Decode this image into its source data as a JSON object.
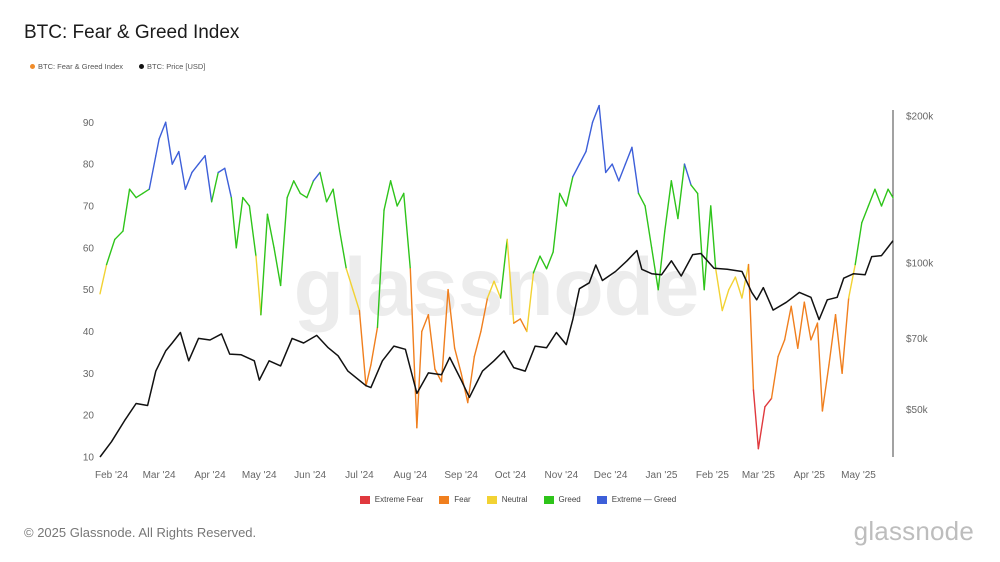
{
  "title": "BTC: Fear & Greed Index",
  "top_legend": [
    {
      "label": "BTC: Fear & Greed Index",
      "color": "#f08c2a"
    },
    {
      "label": "BTC: Price [USD]",
      "color": "#111111"
    }
  ],
  "bottom_legend": [
    {
      "label": "Extreme Fear",
      "color": "#e0393e"
    },
    {
      "label": "Fear",
      "color": "#f07f1e"
    },
    {
      "label": "Neutral",
      "color": "#f2d233"
    },
    {
      "label": "Greed",
      "color": "#2ec41a"
    },
    {
      "label": "Extreme — Greed",
      "color": "#3d5fd9"
    }
  ],
  "footer": "© 2025 Glassnode. All Rights Reserved.",
  "brand": "glassnode",
  "watermark": "glassnode",
  "chart_data": {
    "type": "line",
    "title": "BTC: Fear & Greed Index",
    "x_tick_labels": [
      "Feb '24",
      "Mar '24",
      "Apr '24",
      "May '24",
      "Jun '24",
      "Jul '24",
      "Aug '24",
      "Sep '24",
      "Oct '24",
      "Nov '24",
      "Dec '24",
      "Jan '25",
      "Feb '25",
      "Mar '25",
      "Apr '25",
      "May '25"
    ],
    "x_start": "2024-01-25",
    "x_end": "2025-05-22",
    "left_axis": {
      "ticks": [
        10,
        20,
        30,
        40,
        50,
        60,
        70,
        80,
        90
      ],
      "range": [
        10,
        91.5
      ]
    },
    "right_axis": {
      "scale": "log",
      "tick_labels": [
        "$50k",
        "$70k",
        "$100k",
        "$200k"
      ],
      "tick_values": [
        50000,
        70000,
        100000,
        200000
      ],
      "range": [
        40000,
        200000
      ]
    },
    "zone_thresholds": {
      "extreme_fear_below": 25,
      "fear_below": 46,
      "neutral_below": 55,
      "greed_below": 75
    },
    "series": [
      {
        "name": "BTC: Fear & Greed Index",
        "axis": "left",
        "colored_by_zone": true,
        "points": [
          [
            "2024-01-25",
            49
          ],
          [
            "2024-01-29",
            56
          ],
          [
            "2024-02-03",
            62
          ],
          [
            "2024-02-08",
            64
          ],
          [
            "2024-02-12",
            74
          ],
          [
            "2024-02-16",
            72
          ],
          [
            "2024-02-20",
            73
          ],
          [
            "2024-02-24",
            74
          ],
          [
            "2024-02-28",
            82
          ],
          [
            "2024-03-01",
            86
          ],
          [
            "2024-03-05",
            90
          ],
          [
            "2024-03-09",
            80
          ],
          [
            "2024-03-13",
            83
          ],
          [
            "2024-03-17",
            74
          ],
          [
            "2024-03-21",
            78
          ],
          [
            "2024-03-25",
            80
          ],
          [
            "2024-03-29",
            82
          ],
          [
            "2024-04-02",
            71
          ],
          [
            "2024-04-06",
            78
          ],
          [
            "2024-04-10",
            79
          ],
          [
            "2024-04-14",
            72
          ],
          [
            "2024-04-17",
            60
          ],
          [
            "2024-04-21",
            72
          ],
          [
            "2024-04-25",
            70
          ],
          [
            "2024-04-29",
            58
          ],
          [
            "2024-05-02",
            44
          ],
          [
            "2024-05-06",
            68
          ],
          [
            "2024-05-10",
            60
          ],
          [
            "2024-05-14",
            51
          ],
          [
            "2024-05-18",
            72
          ],
          [
            "2024-05-22",
            76
          ],
          [
            "2024-05-26",
            73
          ],
          [
            "2024-05-30",
            72
          ],
          [
            "2024-06-03",
            76
          ],
          [
            "2024-06-07",
            78
          ],
          [
            "2024-06-11",
            71
          ],
          [
            "2024-06-15",
            74
          ],
          [
            "2024-06-19",
            64
          ],
          [
            "2024-06-23",
            55
          ],
          [
            "2024-06-27",
            50
          ],
          [
            "2024-07-01",
            45
          ],
          [
            "2024-07-05",
            27
          ],
          [
            "2024-07-08",
            32
          ],
          [
            "2024-07-12",
            41
          ],
          [
            "2024-07-16",
            69
          ],
          [
            "2024-07-20",
            76
          ],
          [
            "2024-07-24",
            70
          ],
          [
            "2024-07-28",
            73
          ],
          [
            "2024-08-01",
            55
          ],
          [
            "2024-08-05",
            17
          ],
          [
            "2024-08-08",
            40
          ],
          [
            "2024-08-12",
            44
          ],
          [
            "2024-08-16",
            31
          ],
          [
            "2024-08-20",
            28
          ],
          [
            "2024-08-24",
            50
          ],
          [
            "2024-08-28",
            36
          ],
          [
            "2024-09-01",
            30
          ],
          [
            "2024-09-05",
            23
          ],
          [
            "2024-09-09",
            34
          ],
          [
            "2024-09-13",
            40
          ],
          [
            "2024-09-17",
            48
          ],
          [
            "2024-09-21",
            52
          ],
          [
            "2024-09-25",
            48
          ],
          [
            "2024-09-29",
            62
          ],
          [
            "2024-10-03",
            42
          ],
          [
            "2024-10-07",
            43
          ],
          [
            "2024-10-11",
            40
          ],
          [
            "2024-10-15",
            54
          ],
          [
            "2024-10-19",
            58
          ],
          [
            "2024-10-23",
            55
          ],
          [
            "2024-10-27",
            59
          ],
          [
            "2024-10-31",
            73
          ],
          [
            "2024-11-04",
            70
          ],
          [
            "2024-11-08",
            77
          ],
          [
            "2024-11-12",
            80
          ],
          [
            "2024-11-16",
            83
          ],
          [
            "2024-11-20",
            90
          ],
          [
            "2024-11-24",
            94
          ],
          [
            "2024-11-28",
            78
          ],
          [
            "2024-12-02",
            80
          ],
          [
            "2024-12-06",
            76
          ],
          [
            "2024-12-10",
            80
          ],
          [
            "2024-12-14",
            84
          ],
          [
            "2024-12-18",
            73
          ],
          [
            "2024-12-22",
            70
          ],
          [
            "2024-12-26",
            60
          ],
          [
            "2024-12-30",
            50
          ],
          [
            "2025-01-03",
            64
          ],
          [
            "2025-01-07",
            76
          ],
          [
            "2025-01-11",
            67
          ],
          [
            "2025-01-15",
            80
          ],
          [
            "2025-01-19",
            75
          ],
          [
            "2025-01-23",
            73
          ],
          [
            "2025-01-27",
            50
          ],
          [
            "2025-01-31",
            70
          ],
          [
            "2025-02-03",
            55
          ],
          [
            "2025-02-07",
            45
          ],
          [
            "2025-02-11",
            50
          ],
          [
            "2025-02-15",
            53
          ],
          [
            "2025-02-19",
            48
          ],
          [
            "2025-02-23",
            56
          ],
          [
            "2025-02-26",
            26
          ],
          [
            "2025-03-01",
            12
          ],
          [
            "2025-03-05",
            22
          ],
          [
            "2025-03-09",
            24
          ],
          [
            "2025-03-13",
            34
          ],
          [
            "2025-03-17",
            38
          ],
          [
            "2025-03-21",
            46
          ],
          [
            "2025-03-25",
            36
          ],
          [
            "2025-03-29",
            47
          ],
          [
            "2025-04-02",
            38
          ],
          [
            "2025-04-06",
            42
          ],
          [
            "2025-04-09",
            21
          ],
          [
            "2025-04-13",
            32
          ],
          [
            "2025-04-17",
            44
          ],
          [
            "2025-04-21",
            30
          ],
          [
            "2025-04-25",
            48
          ],
          [
            "2025-04-29",
            56
          ],
          [
            "2025-05-03",
            66
          ],
          [
            "2025-05-07",
            70
          ],
          [
            "2025-05-11",
            74
          ],
          [
            "2025-05-15",
            70
          ],
          [
            "2025-05-19",
            74
          ],
          [
            "2025-05-22",
            72
          ]
        ]
      },
      {
        "name": "BTC: Price [USD]",
        "axis": "right",
        "color": "#111111",
        "points": [
          [
            "2024-01-25",
            40000
          ],
          [
            "2024-02-01",
            43000
          ],
          [
            "2024-02-09",
            47500
          ],
          [
            "2024-02-16",
            51500
          ],
          [
            "2024-02-23",
            51000
          ],
          [
            "2024-02-28",
            60000
          ],
          [
            "2024-03-05",
            66000
          ],
          [
            "2024-03-09",
            68500
          ],
          [
            "2024-03-14",
            72000
          ],
          [
            "2024-03-19",
            63000
          ],
          [
            "2024-03-25",
            70000
          ],
          [
            "2024-04-01",
            69500
          ],
          [
            "2024-04-08",
            71500
          ],
          [
            "2024-04-13",
            65000
          ],
          [
            "2024-04-20",
            64800
          ],
          [
            "2024-04-28",
            63000
          ],
          [
            "2024-05-01",
            57500
          ],
          [
            "2024-05-07",
            63000
          ],
          [
            "2024-05-14",
            61500
          ],
          [
            "2024-05-21",
            70000
          ],
          [
            "2024-05-28",
            68500
          ],
          [
            "2024-06-05",
            71000
          ],
          [
            "2024-06-12",
            67000
          ],
          [
            "2024-06-18",
            64500
          ],
          [
            "2024-06-24",
            60000
          ],
          [
            "2024-07-05",
            56000
          ],
          [
            "2024-07-08",
            55500
          ],
          [
            "2024-07-15",
            63000
          ],
          [
            "2024-07-22",
            67500
          ],
          [
            "2024-07-29",
            66500
          ],
          [
            "2024-08-05",
            54000
          ],
          [
            "2024-08-12",
            59500
          ],
          [
            "2024-08-20",
            59000
          ],
          [
            "2024-08-25",
            64000
          ],
          [
            "2024-09-01",
            57500
          ],
          [
            "2024-09-06",
            53000
          ],
          [
            "2024-09-14",
            60000
          ],
          [
            "2024-09-21",
            63000
          ],
          [
            "2024-09-27",
            66000
          ],
          [
            "2024-10-03",
            61000
          ],
          [
            "2024-10-10",
            60000
          ],
          [
            "2024-10-16",
            67500
          ],
          [
            "2024-10-23",
            67000
          ],
          [
            "2024-10-29",
            72000
          ],
          [
            "2024-11-04",
            68000
          ],
          [
            "2024-11-08",
            76500
          ],
          [
            "2024-11-12",
            88500
          ],
          [
            "2024-11-18",
            91000
          ],
          [
            "2024-11-22",
            99000
          ],
          [
            "2024-11-26",
            92000
          ],
          [
            "2024-12-04",
            96000
          ],
          [
            "2024-12-11",
            101000
          ],
          [
            "2024-12-17",
            106000
          ],
          [
            "2024-12-20",
            97000
          ],
          [
            "2024-12-26",
            95000
          ],
          [
            "2025-01-01",
            94500
          ],
          [
            "2025-01-07",
            101000
          ],
          [
            "2025-01-13",
            94000
          ],
          [
            "2025-01-20",
            104000
          ],
          [
            "2025-01-25",
            104500
          ],
          [
            "2025-02-02",
            97500
          ],
          [
            "2025-02-10",
            97000
          ],
          [
            "2025-02-19",
            96000
          ],
          [
            "2025-02-25",
            87000
          ],
          [
            "2025-02-28",
            84000
          ],
          [
            "2025-03-04",
            89000
          ],
          [
            "2025-03-10",
            80000
          ],
          [
            "2025-03-18",
            83000
          ],
          [
            "2025-03-26",
            87000
          ],
          [
            "2025-04-02",
            85000
          ],
          [
            "2025-04-07",
            76500
          ],
          [
            "2025-04-12",
            84000
          ],
          [
            "2025-04-18",
            85000
          ],
          [
            "2025-04-22",
            93000
          ],
          [
            "2025-04-28",
            95000
          ],
          [
            "2025-05-05",
            94500
          ],
          [
            "2025-05-09",
            103000
          ],
          [
            "2025-05-15",
            103500
          ],
          [
            "2025-05-22",
            111000
          ]
        ]
      }
    ]
  }
}
